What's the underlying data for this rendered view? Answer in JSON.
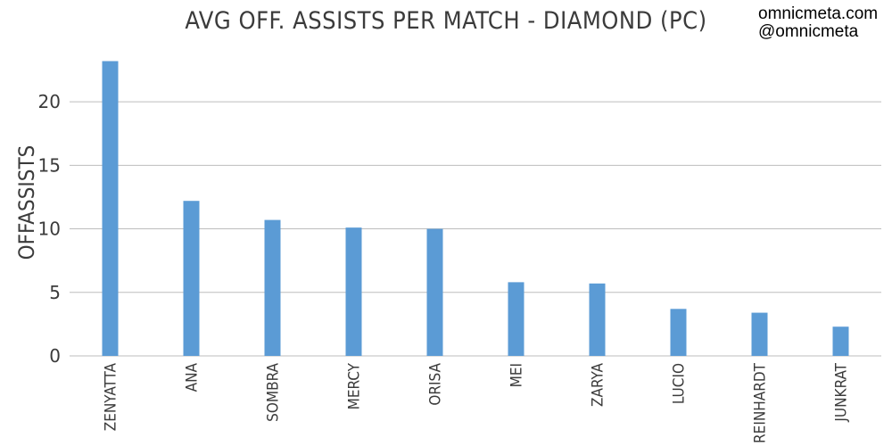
{
  "chart_data": {
    "type": "bar",
    "title": "AVG OFF. ASSISTS PER MATCH - DIAMOND (PC)",
    "ylabel": "OFFASSISTS",
    "xlabel": "",
    "categories": [
      "ZENYATTA",
      "ANA",
      "SOMBRA",
      "MERCY",
      "ORISA",
      "MEI",
      "ZARYA",
      "LUCIO",
      "REINHARDT",
      "JUNKRAT"
    ],
    "values": [
      23.2,
      12.2,
      10.7,
      10.1,
      10.0,
      5.8,
      5.7,
      3.7,
      3.4,
      2.3
    ],
    "ylim": [
      0,
      24.5
    ],
    "yticks": [
      0,
      5,
      10,
      15,
      20
    ],
    "grid": true,
    "legend": "none",
    "bar_color": "#5b9bd5"
  },
  "watermark": {
    "line1": "omnicmeta.com",
    "line2": "@omnicmeta"
  }
}
